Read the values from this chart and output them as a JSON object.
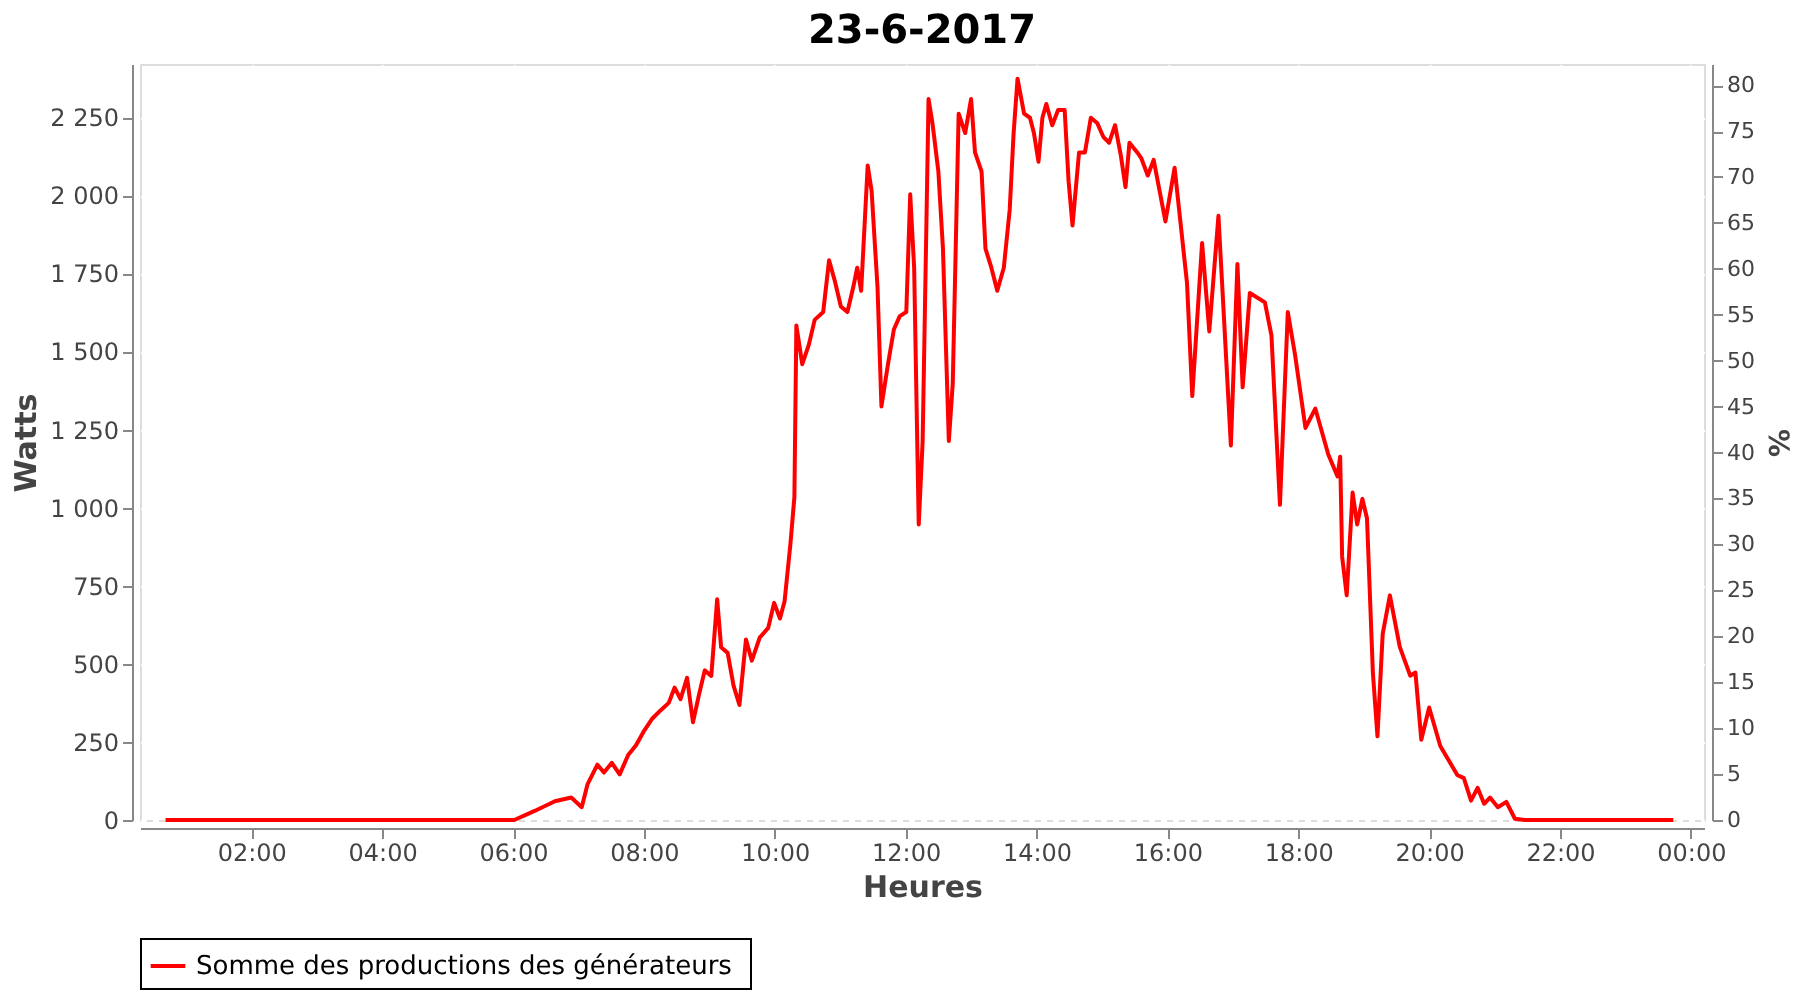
{
  "chart_data": {
    "type": "line",
    "title": "23-6-2017",
    "xlabel": "Heures",
    "ylabel": "Watts",
    "y2label": "%",
    "xlim": [
      0.3,
      24.2
    ],
    "xticks": [
      {
        "value": 2,
        "label": "02:00"
      },
      {
        "value": 4,
        "label": "04:00"
      },
      {
        "value": 6,
        "label": "06:00"
      },
      {
        "value": 8,
        "label": "08:00"
      },
      {
        "value": 10,
        "label": "10:00"
      },
      {
        "value": 12,
        "label": "12:00"
      },
      {
        "value": 14,
        "label": "14:00"
      },
      {
        "value": 16,
        "label": "16:00"
      },
      {
        "value": 18,
        "label": "18:00"
      },
      {
        "value": 20,
        "label": "20:00"
      },
      {
        "value": 22,
        "label": "22:00"
      },
      {
        "value": 24,
        "label": "00:00"
      }
    ],
    "ylim": [
      0,
      2420
    ],
    "yticks": [
      0,
      250,
      500,
      750,
      {
        "value": 1000,
        "label": "1 000"
      },
      {
        "value": 1250,
        "label": "1 250"
      },
      {
        "value": 1500,
        "label": "1 500"
      },
      {
        "value": 1750,
        "label": "1 750"
      },
      {
        "value": 2000,
        "label": "2 000"
      },
      {
        "value": 2250,
        "label": "2 250"
      }
    ],
    "y2lim": [
      0,
      82.3
    ],
    "y2ticks": [
      0,
      5,
      10,
      15,
      20,
      25,
      30,
      35,
      40,
      45,
      50,
      55,
      60,
      65,
      70,
      75,
      80
    ],
    "grid": true,
    "legend": "bottom",
    "marker": "none",
    "line_style": "solid",
    "series": [
      {
        "name": "Somme des productions des  générateurs",
        "color": "#ff0000",
        "x": [
          0.69,
          2.0,
          4.1,
          6.02,
          6.33,
          6.64,
          6.89,
          7.05,
          7.14,
          7.29,
          7.39,
          7.51,
          7.63,
          7.76,
          7.88,
          8.01,
          8.13,
          8.25,
          8.38,
          8.47,
          8.56,
          8.66,
          8.75,
          8.84,
          8.93,
          9.03,
          9.12,
          9.18,
          9.28,
          9.37,
          9.46,
          9.56,
          9.65,
          9.77,
          9.9,
          9.99,
          10.08,
          10.15,
          10.24,
          10.3,
          10.33,
          10.42,
          10.52,
          10.61,
          10.74,
          10.83,
          10.92,
          11.01,
          11.11,
          11.2,
          11.26,
          11.32,
          11.42,
          11.48,
          11.57,
          11.63,
          11.73,
          11.82,
          11.91,
          12.01,
          12.07,
          12.13,
          12.2,
          12.26,
          12.35,
          12.41,
          12.5,
          12.57,
          12.66,
          12.72,
          12.81,
          12.91,
          13.0,
          13.06,
          13.16,
          13.22,
          13.31,
          13.4,
          13.5,
          13.59,
          13.65,
          13.71,
          13.81,
          13.9,
          13.96,
          14.03,
          14.09,
          14.15,
          14.24,
          14.33,
          14.43,
          14.49,
          14.55,
          14.65,
          14.74,
          14.83,
          14.93,
          15.02,
          15.11,
          15.2,
          15.29,
          15.36,
          15.42,
          15.54,
          15.6,
          15.7,
          15.79,
          15.97,
          16.11,
          16.3,
          16.38,
          16.53,
          16.64,
          16.78,
          16.97,
          17.07,
          17.15,
          17.26,
          17.49,
          17.59,
          17.72,
          17.84,
          17.95,
          18.11,
          18.26,
          18.46,
          18.6,
          18.64,
          18.67,
          18.74,
          18.83,
          18.9,
          18.98,
          19.05,
          19.14,
          19.21,
          19.29,
          19.4,
          19.55,
          19.71,
          19.79,
          19.88,
          20.0,
          20.17,
          20.43,
          20.53,
          20.64,
          20.74,
          20.84,
          20.93,
          21.05,
          21.18,
          21.31,
          21.46,
          22.08,
          23.73
        ],
        "values": [
          0,
          0,
          0,
          0,
          29,
          60,
          72,
          41,
          115,
          177,
          152,
          183,
          146,
          208,
          239,
          288,
          325,
          350,
          375,
          424,
          387,
          455,
          313,
          399,
          479,
          461,
          707,
          553,
          535,
          430,
          368,
          578,
          510,
          584,
          615,
          695,
          645,
          700,
          885,
          1034,
          1583,
          1459,
          1521,
          1601,
          1626,
          1792,
          1724,
          1644,
          1626,
          1706,
          1768,
          1694,
          2095,
          2014,
          1706,
          1324,
          1459,
          1570,
          1613,
          1626,
          2003,
          1768,
          946,
          1213,
          2308,
          2230,
          2076,
          1829,
          1213,
          1397,
          2261,
          2199,
          2308,
          2137,
          2076,
          1829,
          1768,
          1694,
          1768,
          1953,
          2199,
          2373,
          2261,
          2248,
          2199,
          2107,
          2248,
          2292,
          2224,
          2273,
          2273,
          2045,
          1903,
          2137,
          2137,
          2248,
          2230,
          2187,
          2168,
          2224,
          2125,
          2026,
          2168,
          2137,
          2119,
          2063,
          2113,
          1916,
          2088,
          1718,
          1357,
          1847,
          1564,
          1934,
          1199,
          1780,
          1385,
          1687,
          1657,
          1551,
          1009,
          1626,
          1490,
          1255,
          1317,
          1169,
          1100,
          1163,
          843,
          719,
          1048,
          946,
          1028,
          966,
          472,
          268,
          596,
          719,
          555,
          462,
          472,
          257,
          360,
          237,
          144,
          134,
          62,
          103,
          52,
          72,
          41,
          58,
          4,
          0,
          0,
          0
        ]
      }
    ]
  }
}
